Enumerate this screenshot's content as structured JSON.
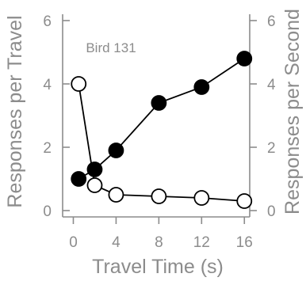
{
  "chart_data": {
    "type": "line",
    "title": "",
    "annotation": "Bird 131",
    "xlabel": "Travel Time (s)",
    "ylabel_left": "Responses per Travel",
    "ylabel_right": "Responses per Second",
    "xlim": [
      -1,
      16.5
    ],
    "ylim": [
      -0.2,
      6.2
    ],
    "xticks": [
      0,
      4,
      8,
      12,
      16
    ],
    "yticks": [
      0,
      2,
      4,
      6
    ],
    "grid": false,
    "legend": "none",
    "series": [
      {
        "marker": "filled",
        "color": "#000000",
        "axis": "left",
        "x": [
          0.5,
          2,
          4,
          8,
          12,
          16
        ],
        "y": [
          1.0,
          1.3,
          1.9,
          3.4,
          3.9,
          4.8
        ]
      },
      {
        "marker": "open",
        "color": "#000000",
        "axis": "right",
        "x": [
          0.5,
          2,
          4,
          8,
          12,
          16
        ],
        "y": [
          4.0,
          0.8,
          0.5,
          0.45,
          0.4,
          0.3
        ]
      }
    ],
    "colors": {
      "axis": "#8c8c8c",
      "text": "#8c8c8c",
      "series": "#000000"
    }
  }
}
